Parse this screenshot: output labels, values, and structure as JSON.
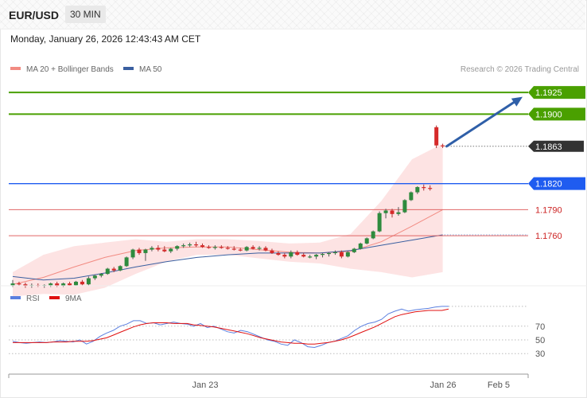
{
  "header": {
    "symbol": "EUR/USD",
    "timeframe": "30 MIN",
    "datetime": "Monday, January 26, 2026 12:43:43 AM CET"
  },
  "legend": {
    "ma20_label": "MA 20 + Bollinger Bands",
    "ma50_label": "MA 50",
    "copyright": "Research © 2026 Trading Central",
    "rsi_label": "RSI",
    "rsi_ma_label": "9MA"
  },
  "colors": {
    "up": "#2e8b3e",
    "down": "#d62a2a",
    "bollinger_fill": "#fde3e3",
    "ma20": "#f28b82",
    "ma50": "#3a5fa0",
    "target": "#4aa000",
    "pivot": "#1f5cf0",
    "support": "#e06666",
    "current": "#333333",
    "arrow": "#2f5fa8",
    "rsi": "#5b7fdf",
    "rsi_ma": "#e01010"
  },
  "chart_data": [
    {
      "type": "candlestick",
      "panel": "price",
      "y_range": [
        1.1706,
        1.1949
      ],
      "x_labels": [
        "Jan 23",
        "Jan 26",
        "Feb 5"
      ],
      "candles": [
        [
          1.1703,
          1.1709,
          1.1701,
          1.1705
        ],
        [
          1.1705,
          1.1707,
          1.1702,
          1.1704
        ],
        [
          1.1704,
          1.1706,
          1.17,
          1.1702
        ],
        [
          1.1702,
          1.1705,
          1.17,
          1.1703
        ],
        [
          1.1703,
          1.1705,
          1.1701,
          1.1702
        ],
        [
          1.1702,
          1.1704,
          1.17,
          1.1703
        ],
        [
          1.1703,
          1.1706,
          1.1701,
          1.1705
        ],
        [
          1.1705,
          1.1707,
          1.1701,
          1.1702
        ],
        [
          1.1702,
          1.1706,
          1.1701,
          1.1705
        ],
        [
          1.1705,
          1.1707,
          1.1702,
          1.1703
        ],
        [
          1.1703,
          1.1708,
          1.1702,
          1.1707
        ],
        [
          1.1707,
          1.1709,
          1.1703,
          1.1704
        ],
        [
          1.1704,
          1.1713,
          1.1703,
          1.1711
        ],
        [
          1.1711,
          1.1715,
          1.1709,
          1.1714
        ],
        [
          1.1714,
          1.1717,
          1.1712,
          1.1716
        ],
        [
          1.1716,
          1.1723,
          1.1715,
          1.1722
        ],
        [
          1.1722,
          1.1724,
          1.1718,
          1.172
        ],
        [
          1.172,
          1.1726,
          1.1719,
          1.1725
        ],
        [
          1.1725,
          1.1736,
          1.1724,
          1.1735
        ],
        [
          1.1735,
          1.1745,
          1.1733,
          1.1744
        ],
        [
          1.1744,
          1.1746,
          1.1738,
          1.174
        ],
        [
          1.174,
          1.1745,
          1.1731,
          1.1744
        ],
        [
          1.1744,
          1.1748,
          1.1742,
          1.1746
        ],
        [
          1.1746,
          1.1749,
          1.1742,
          1.1744
        ],
        [
          1.1744,
          1.1748,
          1.1741,
          1.1742
        ],
        [
          1.1742,
          1.1746,
          1.174,
          1.1745
        ],
        [
          1.1745,
          1.1749,
          1.1743,
          1.1748
        ],
        [
          1.1748,
          1.1751,
          1.1746,
          1.1749
        ],
        [
          1.1749,
          1.1752,
          1.1747,
          1.175
        ],
        [
          1.175,
          1.1753,
          1.1747,
          1.1749
        ],
        [
          1.1749,
          1.1751,
          1.1746,
          1.1747
        ],
        [
          1.1747,
          1.1749,
          1.1745,
          1.1746
        ],
        [
          1.1746,
          1.1749,
          1.1744,
          1.1747
        ],
        [
          1.1747,
          1.1749,
          1.1745,
          1.1746
        ],
        [
          1.1746,
          1.1748,
          1.1744,
          1.1745
        ],
        [
          1.1745,
          1.1748,
          1.1743,
          1.1744
        ],
        [
          1.1744,
          1.1746,
          1.1742,
          1.1743
        ],
        [
          1.1743,
          1.1748,
          1.1742,
          1.1747
        ],
        [
          1.1747,
          1.1749,
          1.1744,
          1.1745
        ],
        [
          1.1745,
          1.1748,
          1.1743,
          1.1746
        ],
        [
          1.1746,
          1.1748,
          1.1742,
          1.1743
        ],
        [
          1.1743,
          1.1745,
          1.1739,
          1.174
        ],
        [
          1.174,
          1.1742,
          1.1737,
          1.1738
        ],
        [
          1.1738,
          1.174,
          1.1734,
          1.1736
        ],
        [
          1.1736,
          1.1743,
          1.1734,
          1.1741
        ],
        [
          1.1741,
          1.1743,
          1.1737,
          1.1738
        ],
        [
          1.1738,
          1.174,
          1.1735,
          1.1736
        ],
        [
          1.1736,
          1.1738,
          1.1734,
          1.1736
        ],
        [
          1.1736,
          1.1739,
          1.1733,
          1.1738
        ],
        [
          1.1738,
          1.174,
          1.1735,
          1.1739
        ],
        [
          1.1739,
          1.1741,
          1.1736,
          1.174
        ],
        [
          1.174,
          1.1743,
          1.1738,
          1.1741
        ],
        [
          1.1741,
          1.1743,
          1.1734,
          1.1736
        ],
        [
          1.1736,
          1.1742,
          1.1735,
          1.1741
        ],
        [
          1.1741,
          1.1746,
          1.174,
          1.1745
        ],
        [
          1.1745,
          1.1752,
          1.1744,
          1.1751
        ],
        [
          1.1751,
          1.1758,
          1.175,
          1.1757
        ],
        [
          1.1757,
          1.1766,
          1.1756,
          1.1765
        ],
        [
          1.1765,
          1.1788,
          1.1764,
          1.1786
        ],
        [
          1.1786,
          1.1791,
          1.178,
          1.1789
        ],
        [
          1.1789,
          1.1791,
          1.1781,
          1.1785
        ],
        [
          1.1785,
          1.1793,
          1.1783,
          1.1787
        ],
        [
          1.1787,
          1.1802,
          1.1786,
          1.1801
        ],
        [
          1.1801,
          1.1811,
          1.18,
          1.181
        ],
        [
          1.181,
          1.1817,
          1.1808,
          1.1816
        ],
        [
          1.1816,
          1.1819,
          1.1812,
          1.1815
        ],
        [
          1.1815,
          1.1818,
          1.1812,
          1.1814
        ],
        [
          1.1885,
          1.1887,
          1.1861,
          1.1864
        ],
        [
          1.1864,
          1.1866,
          1.1861,
          1.1863
        ]
      ],
      "bollinger": {
        "upper": [
          1.1718,
          1.1738,
          1.1748,
          1.1752,
          1.1756,
          1.1753,
          1.1756,
          1.1756,
          1.1754,
          1.1751,
          1.1752,
          1.1762,
          1.18,
          1.1848,
          1.1866
        ],
        "lower": [
          1.169,
          1.1693,
          1.1692,
          1.17,
          1.1716,
          1.173,
          1.1738,
          1.1738,
          1.1734,
          1.173,
          1.1728,
          1.1722,
          1.1718,
          1.1712,
          1.1718
        ]
      },
      "ma20": [
        1.1704,
        1.1712,
        1.1724,
        1.1735,
        1.1743,
        1.1746,
        1.1747,
        1.1747,
        1.1744,
        1.1741,
        1.174,
        1.1742,
        1.1753,
        1.1771,
        1.179
      ],
      "ma50": [
        1.1713,
        1.1709,
        1.1711,
        1.1717,
        1.1724,
        1.173,
        1.1735,
        1.1738,
        1.174,
        1.174,
        1.174,
        1.1743,
        1.1749,
        1.1755,
        1.1761
      ],
      "levels": [
        {
          "value": 1.1925,
          "label": "1.1925",
          "kind": "target"
        },
        {
          "value": 1.19,
          "label": "1.1900",
          "kind": "target"
        },
        {
          "value": 1.1863,
          "label": "1.1863",
          "kind": "current"
        },
        {
          "value": 1.182,
          "label": "1.1820",
          "kind": "pivot"
        },
        {
          "value": 1.179,
          "label": "1.1790",
          "kind": "support"
        },
        {
          "value": 1.176,
          "label": "1.1760",
          "kind": "support"
        }
      ],
      "arrow": {
        "from": 1.1863,
        "to": 1.192
      }
    },
    {
      "type": "line",
      "panel": "rsi",
      "y_range": [
        0,
        100
      ],
      "y_ticks": [
        {
          "value": 70,
          "label": "70"
        },
        {
          "value": 50,
          "label": "50"
        },
        {
          "value": 30,
          "label": "30"
        }
      ],
      "series": [
        {
          "name": "RSI",
          "values": [
            48,
            46,
            45,
            46,
            47,
            46,
            47,
            49,
            48,
            47,
            50,
            44,
            48,
            55,
            60,
            64,
            70,
            73,
            78,
            78,
            74,
            75,
            72,
            74,
            76,
            74,
            73,
            70,
            74,
            68,
            70,
            66,
            62,
            60,
            64,
            62,
            58,
            54,
            50,
            48,
            44,
            42,
            50,
            46,
            40,
            39,
            42,
            46,
            48,
            52,
            56,
            64,
            70,
            74,
            76,
            80,
            88,
            92,
            95,
            92,
            94,
            95,
            96,
            98,
            99,
            99
          ]
        },
        {
          "name": "9MA",
          "values": [
            46,
            46,
            46,
            46,
            46,
            46,
            47,
            47,
            47,
            48,
            48,
            48,
            49,
            51,
            53,
            57,
            61,
            65,
            69,
            72,
            74,
            75,
            75,
            75,
            74,
            74,
            74,
            72,
            71,
            70,
            69,
            67,
            65,
            63,
            61,
            59,
            56,
            53,
            51,
            49,
            47,
            46,
            45,
            45,
            44,
            44,
            45,
            46,
            48,
            50,
            53,
            57,
            61,
            65,
            69,
            74,
            79,
            84,
            87,
            89,
            91,
            92,
            93,
            93,
            93,
            95
          ]
        }
      ]
    }
  ]
}
